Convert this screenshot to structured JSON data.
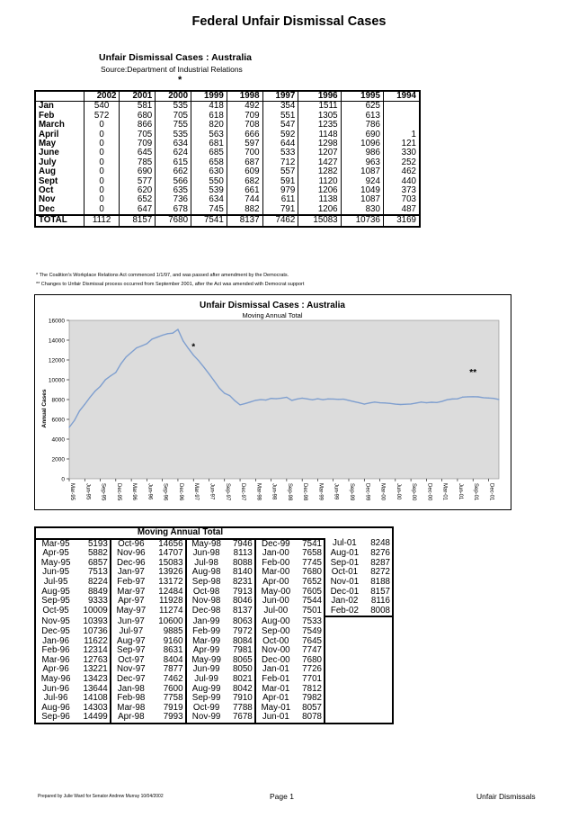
{
  "title": "Federal Unfair Dismissal Cases",
  "table": {
    "title": "Unfair Dismissal Cases : Australia",
    "source": "Source:Department of Industrial Relations",
    "star": "*",
    "headers": [
      "",
      "2002",
      "2001",
      "2000",
      "1999",
      "1998",
      "1997",
      "1996",
      "1995",
      "1994"
    ],
    "rows": [
      [
        "Jan",
        "540",
        "581",
        "535",
        "418",
        "492",
        "354",
        "1511",
        "625",
        ""
      ],
      [
        "Feb",
        "572",
        "680",
        "705",
        "618",
        "709",
        "551",
        "1305",
        "613",
        ""
      ],
      [
        "March",
        "0",
        "866",
        "755",
        "820",
        "708",
        "547",
        "1235",
        "786",
        ""
      ],
      [
        "April",
        "0",
        "705",
        "535",
        "563",
        "666",
        "592",
        "1148",
        "690",
        "1"
      ],
      [
        "May",
        "0",
        "709",
        "634",
        "681",
        "597",
        "644",
        "1298",
        "1096",
        "121"
      ],
      [
        "June",
        "0",
        "645",
        "624",
        "685",
        "700",
        "533",
        "1207",
        "986",
        "330"
      ],
      [
        "July",
        "0",
        "785",
        "615",
        "658",
        "687",
        "712",
        "1427",
        "963",
        "252"
      ],
      [
        "Aug",
        "0",
        "690",
        "662",
        "630",
        "609",
        "557",
        "1282",
        "1087",
        "462"
      ],
      [
        "Sept",
        "0",
        "577",
        "566",
        "550",
        "682",
        "591",
        "1120",
        "924",
        "440"
      ],
      [
        "Oct",
        "0",
        "620",
        "635",
        "539",
        "661",
        "979",
        "1206",
        "1049",
        "373"
      ],
      [
        "Nov",
        "0",
        "652",
        "736",
        "634",
        "744",
        "611",
        "1138",
        "1087",
        "703"
      ],
      [
        "Dec",
        "0",
        "647",
        "678",
        "745",
        "882",
        "791",
        "1206",
        "830",
        "487"
      ]
    ],
    "total": [
      "TOTAL",
      "1112",
      "8157",
      "7680",
      "7541",
      "8137",
      "7462",
      "15083",
      "10736",
      "3169"
    ]
  },
  "footnotes": [
    "* The Coalition's Workplace Relations Act commenced 1/1/97, and was passed after amendment by the Democrats.",
    "** Changes to Unfair Dismissal process occurred from September 2001, after the Act was amended with Democrat support"
  ],
  "chart_data": {
    "type": "line",
    "title": "Unfair Dismissal Cases : Australia",
    "subtitle": "Moving Annual Total",
    "ylabel": "Annual Cases",
    "xlabel": "",
    "ylim": [
      0,
      16000
    ],
    "yticks": [
      0,
      2000,
      4000,
      6000,
      8000,
      10000,
      12000,
      14000,
      16000
    ],
    "xtick_labels": [
      "Mar-95",
      "Jun-95",
      "Sep-95",
      "Dec-95",
      "Mar-96",
      "Jun-96",
      "Sep-96",
      "Dec-96",
      "Mar-97",
      "Jun-97",
      "Sep-97",
      "Dec-97",
      "Mar-98",
      "Jun-98",
      "Sep-98",
      "Dec-98",
      "Mar-99",
      "Jun-99",
      "Sep-99",
      "Dec-99",
      "Mar-00",
      "Jun-00",
      "Sep-00",
      "Dec-00",
      "Mar-01",
      "Jun-01",
      "Sep-01",
      "Dec-01"
    ],
    "annotations": [
      {
        "text": "*",
        "x": "Mar-97"
      },
      {
        "text": "**",
        "x": "Sep-01"
      }
    ],
    "line_color": "#7f9fcf",
    "plot_bg": "#dcdcdc",
    "x": [
      "Mar-95",
      "Apr-95",
      "May-95",
      "Jun-95",
      "Jul-95",
      "Aug-95",
      "Sep-95",
      "Oct-95",
      "Nov-95",
      "Dec-95",
      "Jan-96",
      "Feb-96",
      "Mar-96",
      "Apr-96",
      "May-96",
      "Jun-96",
      "Jul-96",
      "Aug-96",
      "Sep-96",
      "Oct-96",
      "Nov-96",
      "Dec-96",
      "Jan-97",
      "Feb-97",
      "Mar-97",
      "Apr-97",
      "May-97",
      "Jun-97",
      "Jul-97",
      "Aug-97",
      "Sep-97",
      "Oct-97",
      "Nov-97",
      "Dec-97",
      "Jan-98",
      "Feb-98",
      "Mar-98",
      "Apr-98",
      "May-98",
      "Jun-98",
      "Jul-98",
      "Aug-98",
      "Sep-98",
      "Oct-98",
      "Nov-98",
      "Dec-98",
      "Jan-99",
      "Feb-99",
      "Mar-99",
      "Apr-99",
      "May-99",
      "Jun-99",
      "Jul-99",
      "Aug-99",
      "Sep-99",
      "Oct-99",
      "Nov-99",
      "Dec-99",
      "Jan-00",
      "Feb-00",
      "Mar-00",
      "Apr-00",
      "May-00",
      "Jun-00",
      "Jul-00",
      "Aug-00",
      "Sep-00",
      "Oct-00",
      "Nov-00",
      "Dec-00",
      "Jan-01",
      "Feb-01",
      "Mar-01",
      "Apr-01",
      "May-01",
      "Jun-01",
      "Jul-01",
      "Aug-01",
      "Sep-01",
      "Oct-01",
      "Nov-01",
      "Dec-01",
      "Jan-02",
      "Feb-02"
    ],
    "values": [
      5193,
      5882,
      6857,
      7513,
      8224,
      8849,
      9333,
      10009,
      10393,
      10736,
      11622,
      12314,
      12763,
      13221,
      13423,
      13644,
      14108,
      14303,
      14499,
      14656,
      14707,
      15083,
      13926,
      13172,
      12484,
      11928,
      11274,
      10600,
      9885,
      9160,
      8631,
      8404,
      7877,
      7462,
      7600,
      7758,
      7919,
      7993,
      7946,
      8113,
      8088,
      8140,
      8231,
      7913,
      8046,
      8137,
      8063,
      7972,
      8084,
      7981,
      8065,
      8050,
      8021,
      8042,
      7910,
      7788,
      7678,
      7541,
      7658,
      7745,
      7680,
      7652,
      7605,
      7544,
      7501,
      7533,
      7549,
      7645,
      7747,
      7680,
      7726,
      7701,
      7812,
      7982,
      8057,
      8078,
      8248,
      8276,
      8287,
      8272,
      8188,
      8157,
      8116,
      8008
    ]
  },
  "mat_table": {
    "title": "Moving Annual Total",
    "columns": [
      [
        [
          "Mar-95",
          "5193"
        ],
        [
          "Apr-95",
          "5882"
        ],
        [
          "May-95",
          "6857"
        ],
        [
          "Jun-95",
          "7513"
        ],
        [
          "Jul-95",
          "8224"
        ],
        [
          "Aug-95",
          "8849"
        ],
        [
          "Sep-95",
          "9333"
        ],
        [
          "Oct-95",
          "10009"
        ],
        [
          "Nov-95",
          "10393"
        ],
        [
          "Dec-95",
          "10736"
        ],
        [
          "Jan-96",
          "11622"
        ],
        [
          "Feb-96",
          "12314"
        ],
        [
          "Mar-96",
          "12763"
        ],
        [
          "Apr-96",
          "13221"
        ],
        [
          "May-96",
          "13423"
        ],
        [
          "Jun-96",
          "13644"
        ],
        [
          "Jul-96",
          "14108"
        ],
        [
          "Aug-96",
          "14303"
        ],
        [
          "Sep-96",
          "14499"
        ]
      ],
      [
        [
          "Oct-96",
          "14656"
        ],
        [
          "Nov-96",
          "14707"
        ],
        [
          "Dec-96",
          "15083"
        ],
        [
          "Jan-97",
          "13926"
        ],
        [
          "Feb-97",
          "13172"
        ],
        [
          "Mar-97",
          "12484"
        ],
        [
          "Apr-97",
          "11928"
        ],
        [
          "May-97",
          "11274"
        ],
        [
          "Jun-97",
          "10600"
        ],
        [
          "Jul-97",
          "9885"
        ],
        [
          "Aug-97",
          "9160"
        ],
        [
          "Sep-97",
          "8631"
        ],
        [
          "Oct-97",
          "8404"
        ],
        [
          "Nov-97",
          "7877"
        ],
        [
          "Dec-97",
          "7462"
        ],
        [
          "Jan-98",
          "7600"
        ],
        [
          "Feb-98",
          "7758"
        ],
        [
          "Mar-98",
          "7919"
        ],
        [
          "Apr-98",
          "7993"
        ]
      ],
      [
        [
          "May-98",
          "7946"
        ],
        [
          "Jun-98",
          "8113"
        ],
        [
          "Jul-98",
          "8088"
        ],
        [
          "Aug-98",
          "8140"
        ],
        [
          "Sep-98",
          "8231"
        ],
        [
          "Oct-98",
          "7913"
        ],
        [
          "Nov-98",
          "8046"
        ],
        [
          "Dec-98",
          "8137"
        ],
        [
          "Jan-99",
          "8063"
        ],
        [
          "Feb-99",
          "7972"
        ],
        [
          "Mar-99",
          "8084"
        ],
        [
          "Apr-99",
          "7981"
        ],
        [
          "May-99",
          "8065"
        ],
        [
          "Jun-99",
          "8050"
        ],
        [
          "Jul-99",
          "8021"
        ],
        [
          "Aug-99",
          "8042"
        ],
        [
          "Sep-99",
          "7910"
        ],
        [
          "Oct-99",
          "7788"
        ],
        [
          "Nov-99",
          "7678"
        ]
      ],
      [
        [
          "Dec-99",
          "7541"
        ],
        [
          "Jan-00",
          "7658"
        ],
        [
          "Feb-00",
          "7745"
        ],
        [
          "Mar-00",
          "7680"
        ],
        [
          "Apr-00",
          "7652"
        ],
        [
          "May-00",
          "7605"
        ],
        [
          "Jun-00",
          "7544"
        ],
        [
          "Jul-00",
          "7501"
        ],
        [
          "Aug-00",
          "7533"
        ],
        [
          "Sep-00",
          "7549"
        ],
        [
          "Oct-00",
          "7645"
        ],
        [
          "Nov-00",
          "7747"
        ],
        [
          "Dec-00",
          "7680"
        ],
        [
          "Jan-01",
          "7726"
        ],
        [
          "Feb-01",
          "7701"
        ],
        [
          "Mar-01",
          "7812"
        ],
        [
          "Apr-01",
          "7982"
        ],
        [
          "May-01",
          "8057"
        ],
        [
          "Jun-01",
          "8078"
        ]
      ],
      [
        [
          "Jul-01",
          "8248"
        ],
        [
          "Aug-01",
          "8276"
        ],
        [
          "Sep-01",
          "8287"
        ],
        [
          "Oct-01",
          "8272"
        ],
        [
          "Nov-01",
          "8188"
        ],
        [
          "Dec-01",
          "8157"
        ],
        [
          "Jan-02",
          "8116"
        ],
        [
          "Feb-02",
          "8008"
        ]
      ]
    ]
  },
  "footer": {
    "prepared": "Prepared by Julie Ward for Senator Andrew Murray 10/04/2002",
    "page": "Page 1",
    "right": "Unfair Dismissals"
  }
}
